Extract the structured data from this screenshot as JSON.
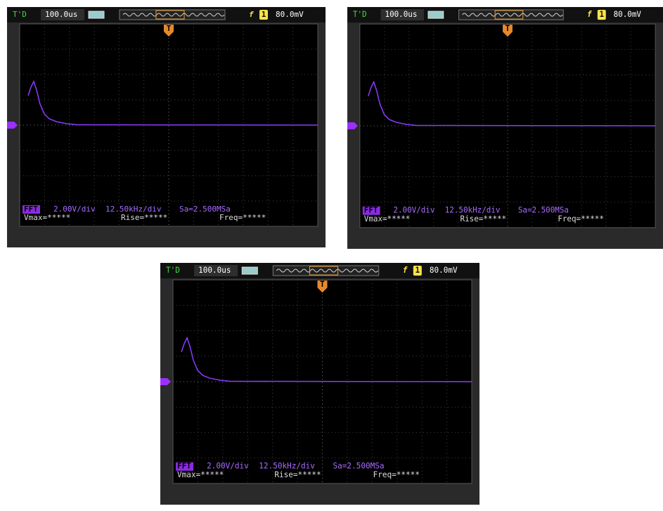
{
  "panels": [
    {
      "mode": "T'D",
      "timebase": "100.0us",
      "trigger_channel": "1",
      "trigger_level": "80.0mV",
      "trigger_marker": "T",
      "math": "FFT",
      "scale": "2.00V/div",
      "freq_scale": "12.50kHz/div",
      "sample_rate": "Sa=2.500MSa",
      "measurements": [
        "Vmax=*****",
        "Rise=*****",
        "Freq=*****"
      ]
    },
    {
      "mode": "T'D",
      "timebase": "100.0us",
      "trigger_channel": "1",
      "trigger_level": "80.0mV",
      "trigger_marker": "T",
      "math": "FFT",
      "scale": "2.00V/div",
      "freq_scale": "12.50kHz/div",
      "sample_rate": "Sa=2.500MSa",
      "measurements": [
        "Vmax=*****",
        "Rise=*****",
        "Freq=*****"
      ]
    },
    {
      "mode": "T'D",
      "timebase": "100.0us",
      "trigger_channel": "1",
      "trigger_level": "80.0mV",
      "trigger_marker": "T",
      "math": "FFT",
      "scale": "2.00V/div",
      "freq_scale": "12.50kHz/div",
      "sample_rate": "Sa=2.500MSa",
      "measurements": [
        "Vmax=*****",
        "Rise=*****",
        "Freq=*****"
      ]
    }
  ]
}
